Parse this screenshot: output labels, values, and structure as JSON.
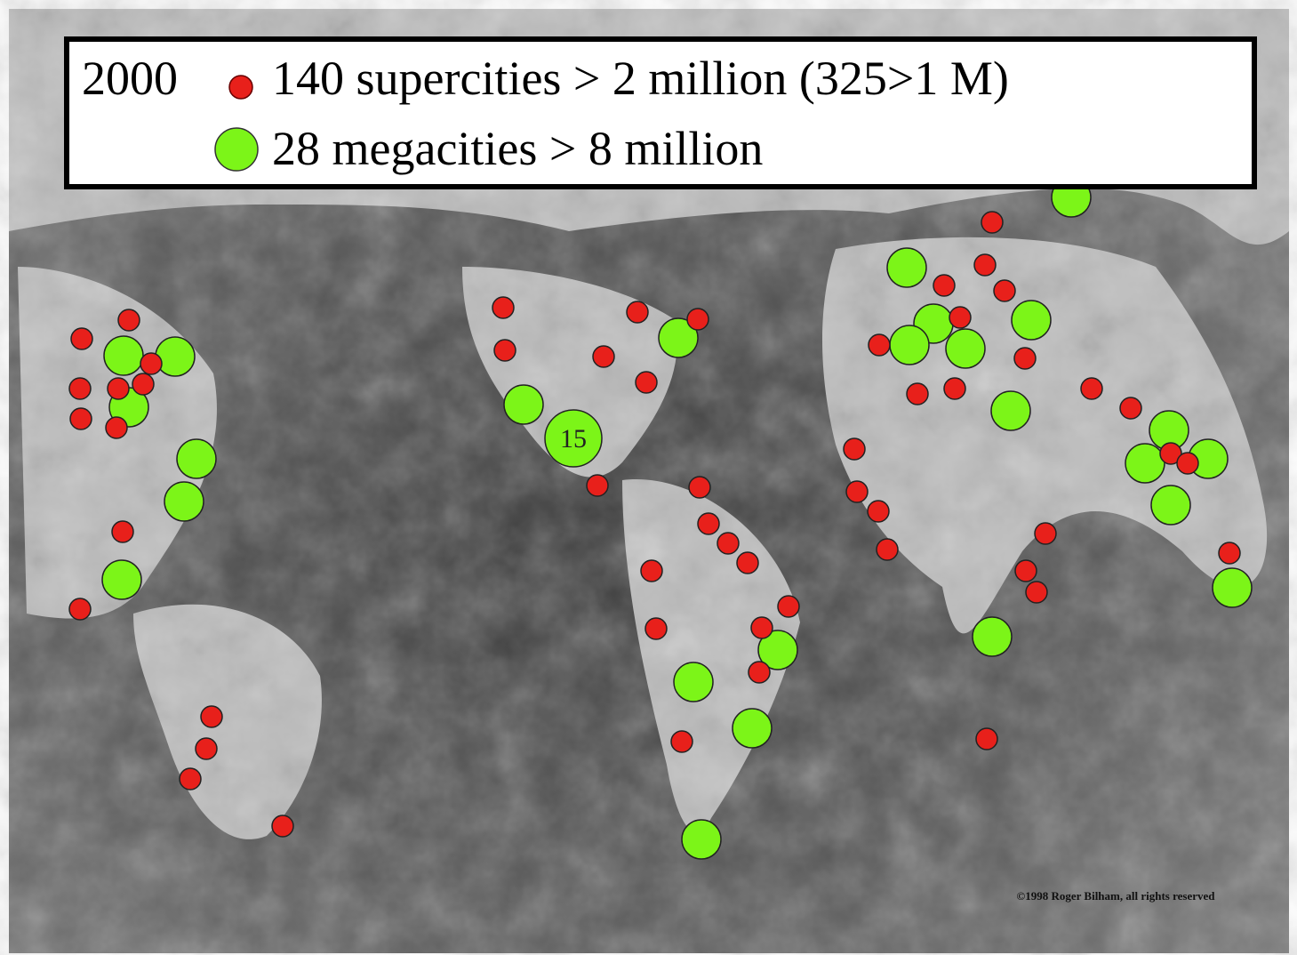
{
  "legend": {
    "year": "2000",
    "supercities": "140 supercities > 2 million (325>1 M)",
    "megacities": "28 megacities > 8 million"
  },
  "map": {
    "marker_label": "15",
    "copyright": "©1998 Roger Bilham, all rights reserved"
  }
}
